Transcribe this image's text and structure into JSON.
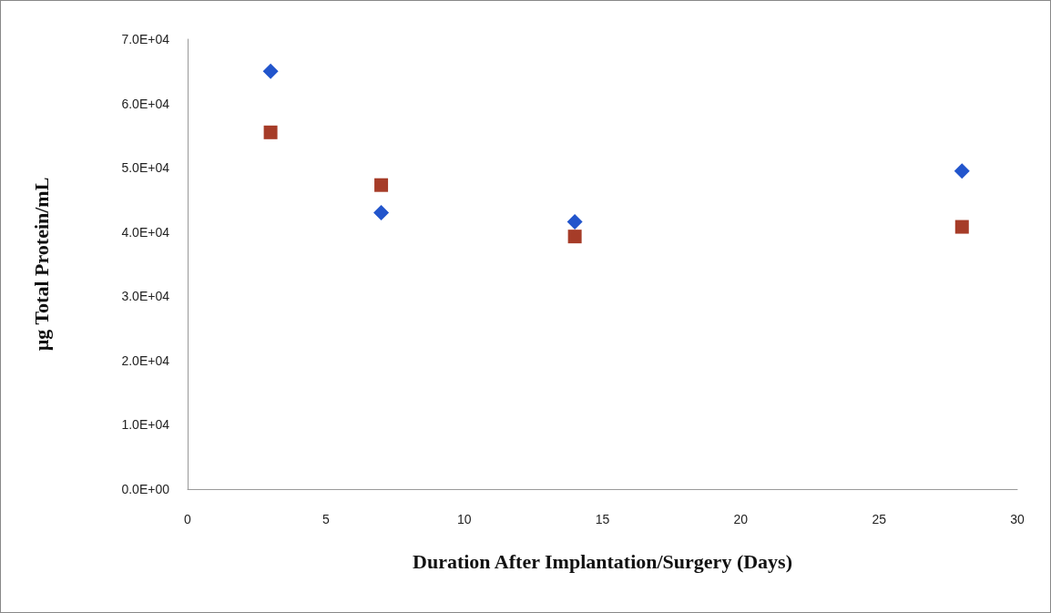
{
  "chart_data": {
    "type": "scatter",
    "xlabel": "Duration After Implantation/Surgery (Days)",
    "ylabel": "µg Total Protein/mL",
    "series": [
      {
        "color": "#2255cc",
        "marker": "diamond",
        "x": [
          3,
          7,
          14,
          28
        ],
        "values": [
          65000,
          43000,
          41600,
          49500
        ]
      },
      {
        "color": "#a63c28",
        "marker": "square",
        "x": [
          3,
          7,
          14,
          28
        ],
        "values": [
          55500,
          47300,
          39300,
          40800
        ]
      }
    ],
    "xlim": [
      0,
      30
    ],
    "xticks": [
      0,
      5,
      10,
      15,
      20,
      25,
      30
    ],
    "ylim": [
      0,
      70000
    ],
    "yticks": [
      {
        "value": 0,
        "label": "0.0E+00"
      },
      {
        "value": 10000,
        "label": "1.0E+04"
      },
      {
        "value": 20000,
        "label": "2.0E+04"
      },
      {
        "value": 30000,
        "label": "3.0E+04"
      },
      {
        "value": 40000,
        "label": "4.0E+04"
      },
      {
        "value": 50000,
        "label": "5.0E+04"
      },
      {
        "value": 60000,
        "label": "6.0E+04"
      },
      {
        "value": 70000,
        "label": "7.0E+04"
      }
    ],
    "grid": false
  }
}
